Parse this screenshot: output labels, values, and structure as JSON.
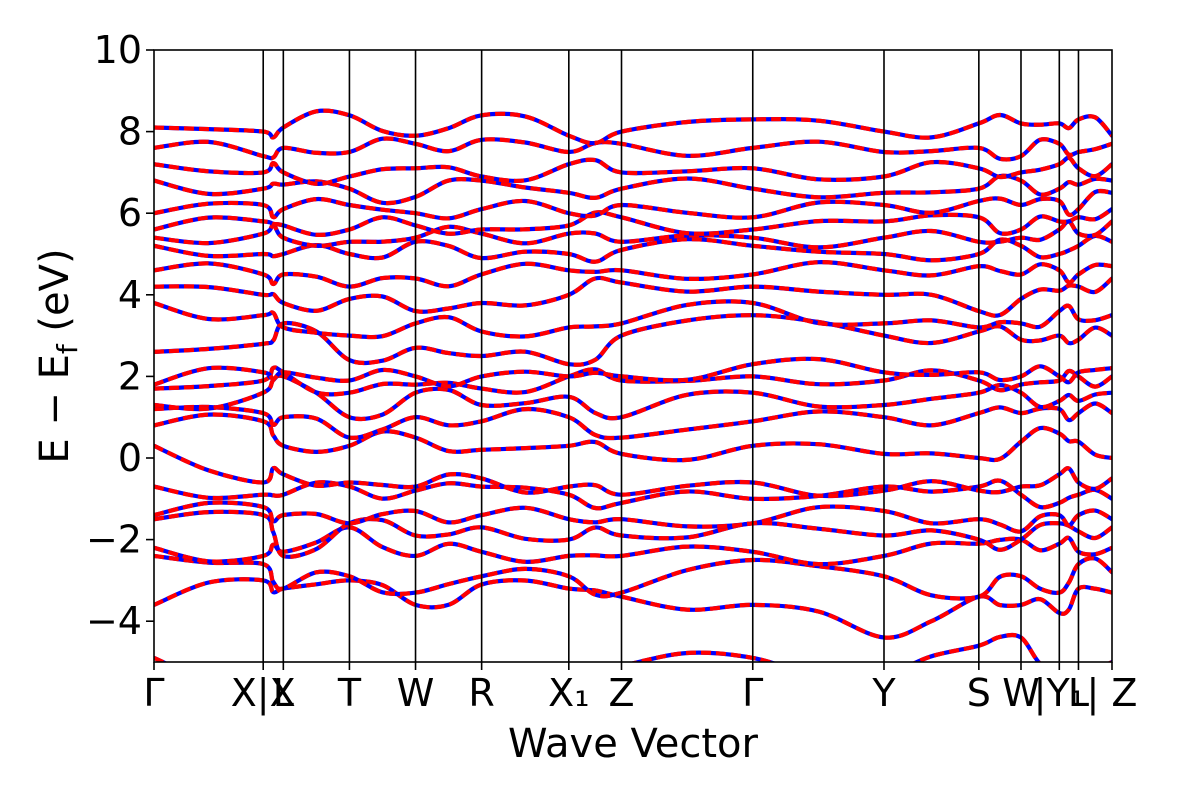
{
  "chart_data": {
    "type": "line",
    "xlabel": "Wave Vector",
    "ylabel": "E − E_f (eV)",
    "ylabel_main": "E − E",
    "ylabel_sub": "f",
    "ylabel_unit": " (eV)",
    "ylim": [
      -5,
      10
    ],
    "yticks": [
      10,
      8,
      6,
      4,
      2,
      0,
      -2,
      -4
    ],
    "ytick_labels": [
      "10",
      "8",
      "6",
      "4",
      "2",
      "0",
      "−2",
      "−4"
    ],
    "x_range": [
      0,
      100
    ],
    "kpoints": [
      {
        "label": "Γ",
        "x": 0
      },
      {
        "label": "X|X",
        "x": 11.4
      },
      {
        "label": "L",
        "x": 13.5
      },
      {
        "label": "T",
        "x": 20.4
      },
      {
        "label": "W",
        "x": 27.3
      },
      {
        "label": "R",
        "x": 34.2
      },
      {
        "label": "X₁",
        "x": 43.3
      },
      {
        "label": "Z",
        "x": 48.8
      },
      {
        "label": "Γ",
        "x": 62.5
      },
      {
        "label": "Y",
        "x": 76.2
      },
      {
        "label": "S",
        "x": 86.1
      },
      {
        "label": "W",
        "x": 90.5
      },
      {
        "label": "|Y₁",
        "x": 94.5
      },
      {
        "label": "L",
        "x": 96.5
      },
      {
        "label": "| Z",
        "x": 100
      }
    ],
    "series": [
      {
        "color": "#0000ff",
        "style": "solid"
      },
      {
        "color": "#ff0000",
        "style": "dashed"
      }
    ],
    "bands": [
      [
        -3.6,
        -3.0,
        -3.2,
        -3.0,
        -3.6,
        -3.1,
        -3.2,
        -3.4,
        -3.6,
        -4.4,
        -3.4,
        -3.6,
        -3.8,
        -3.2,
        -3.3
      ],
      [
        -2.4,
        -2.6,
        -3.2,
        -2.9,
        -3.3,
        -2.9,
        -2.9,
        -3.3,
        -2.5,
        -2.9,
        -3.4,
        -2.9,
        -3.3,
        -2.6,
        -2.8
      ],
      [
        -2.2,
        -2.4,
        -2.3,
        -1.7,
        -2.4,
        -2.3,
        -2.4,
        -2.4,
        -2.3,
        -2.4,
        -2.1,
        -2.0,
        -2.1,
        -2.3,
        -2.2
      ],
      [
        -1.5,
        -1.4,
        -2.4,
        -1.6,
        -1.9,
        -1.7,
        -2.0,
        -1.9,
        -1.6,
        -1.9,
        -2.0,
        -2.0,
        -1.6,
        -1.8,
        -1.7
      ],
      [
        -1.4,
        -1.2,
        -1.4,
        -1.6,
        -1.3,
        -1.4,
        -1.5,
        -1.5,
        -1.6,
        -1.3,
        -1.5,
        -1.8,
        -1.4,
        -1.4,
        -1.5
      ],
      [
        -0.7,
        -0.9,
        -0.9,
        -0.7,
        -0.8,
        -0.7,
        -0.9,
        -1.1,
        -1.0,
        -0.7,
        -0.7,
        -0.9,
        -1.1,
        -0.9,
        -1.0
      ],
      [
        0.3,
        -0.6,
        -0.4,
        -0.6,
        -0.7,
        -0.5,
        -0.7,
        -0.9,
        -0.6,
        -0.8,
        -0.8,
        -0.7,
        -0.4,
        -0.6,
        -0.5
      ],
      [
        0.8,
        0.9,
        0.3,
        0.3,
        0.5,
        0.2,
        0.3,
        0.1,
        0.3,
        0.1,
        0.0,
        0.4,
        0.6,
        0.4,
        0.0
      ],
      [
        1.2,
        1.1,
        1.0,
        0.5,
        1.0,
        0.9,
        1.0,
        0.5,
        0.9,
        1.0,
        1.1,
        1.1,
        1.2,
        1.1,
        1.1
      ],
      [
        1.3,
        1.6,
        2.0,
        1.0,
        1.6,
        1.3,
        1.5,
        1.0,
        1.6,
        1.3,
        1.6,
        1.6,
        1.4,
        1.4,
        1.6
      ],
      [
        1.7,
        1.9,
        2.1,
        1.6,
        1.8,
        1.7,
        2.0,
        1.9,
        2.0,
        1.9,
        1.9,
        1.8,
        1.9,
        2.0,
        2.0
      ],
      [
        1.8,
        2.1,
        2.1,
        1.9,
        2.0,
        2.0,
        2.0,
        2.0,
        2.3,
        2.1,
        2.1,
        2.0,
        2.0,
        2.1,
        2.2
      ],
      [
        2.6,
        2.8,
        3.3,
        2.4,
        2.7,
        2.5,
        2.3,
        3.0,
        3.5,
        3.0,
        3.1,
        2.9,
        3.0,
        2.9,
        3.0
      ],
      [
        3.8,
        3.5,
        3.2,
        3.0,
        3.3,
        3.1,
        3.2,
        3.3,
        3.8,
        3.3,
        3.2,
        3.3,
        3.6,
        3.4,
        3.5
      ],
      [
        4.2,
        4.0,
        3.8,
        3.9,
        3.6,
        3.8,
        4.0,
        4.3,
        4.2,
        4.0,
        3.6,
        3.9,
        4.1,
        4.2,
        4.4
      ],
      [
        4.6,
        4.5,
        4.5,
        4.2,
        4.4,
        4.5,
        4.6,
        4.6,
        4.5,
        4.6,
        4.7,
        4.5,
        4.6,
        4.5,
        4.7
      ],
      [
        5.2,
        5.0,
        5.0,
        5.0,
        5.3,
        4.9,
        5.0,
        5.1,
        5.2,
        5.0,
        5.0,
        5.2,
        5.0,
        5.2,
        5.3
      ],
      [
        5.4,
        5.5,
        5.4,
        5.3,
        5.4,
        5.5,
        5.5,
        5.3,
        5.4,
        5.4,
        5.3,
        5.4,
        5.6,
        5.5,
        5.8
      ],
      [
        5.6,
        5.8,
        5.7,
        5.6,
        5.7,
        5.6,
        5.7,
        5.9,
        5.6,
        5.8,
        5.9,
        5.6,
        5.8,
        5.9,
        6.1
      ],
      [
        6.0,
        6.2,
        6.1,
        6.2,
        6.0,
        6.1,
        6.0,
        6.2,
        5.9,
        6.2,
        6.3,
        6.2,
        6.3,
        6.1,
        6.5
      ],
      [
        6.8,
        6.6,
        6.7,
        6.6,
        6.4,
        6.8,
        6.5,
        6.6,
        6.6,
        6.5,
        6.6,
        6.8,
        6.6,
        6.7,
        6.8
      ],
      [
        7.2,
        7.0,
        7.0,
        6.9,
        7.1,
        6.9,
        7.2,
        7.0,
        7.1,
        6.9,
        7.1,
        7.0,
        7.2,
        7.1,
        7.2
      ],
      [
        7.6,
        7.4,
        7.6,
        7.5,
        7.7,
        7.8,
        7.5,
        7.7,
        7.6,
        7.5,
        7.6,
        7.4,
        7.7,
        7.5,
        7.7
      ],
      [
        8.1,
        8.0,
        8.1,
        8.4,
        7.9,
        8.4,
        7.9,
        8.0,
        8.3,
        8.0,
        8.2,
        8.2,
        8.2,
        8.3,
        7.9
      ]
    ],
    "bottom_bands": [
      [
        -4.9,
        -5.5,
        -5.6,
        -5.3,
        -5.5,
        -5.2,
        -5.3,
        -5.1,
        -4.9,
        -5.3,
        -4.6,
        -4.4,
        -5.2,
        -5.3,
        -5.0
      ]
    ]
  }
}
